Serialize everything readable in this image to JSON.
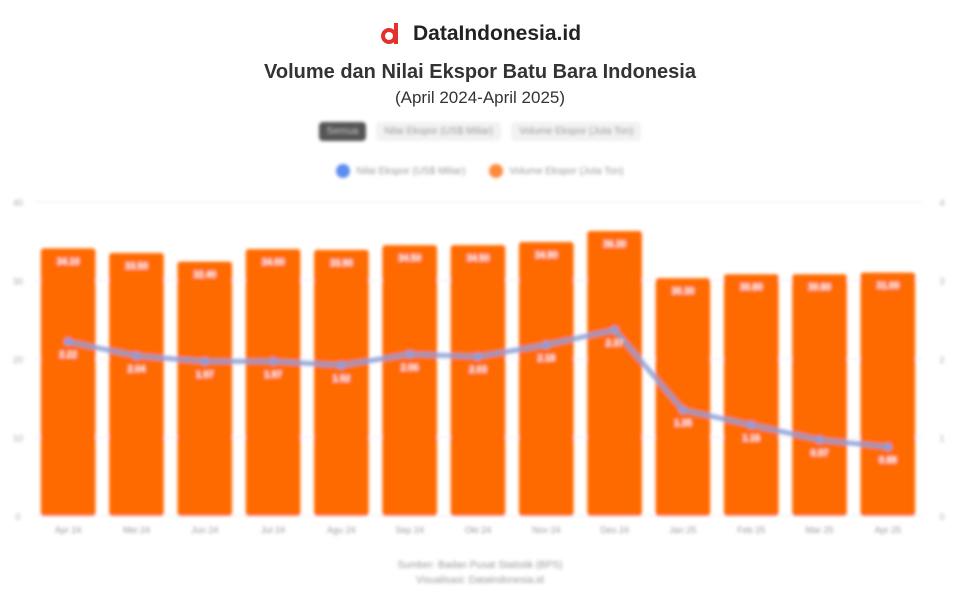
{
  "brand": {
    "name": "DataIndonesia.id",
    "color": "#e5312b"
  },
  "buttons": [
    {
      "label": "Semua",
      "active": true
    },
    {
      "label": "Nilai Ekspor (US$ Miliar)",
      "active": false
    },
    {
      "label": "Volume Ekspor (Juta Ton)",
      "active": false
    }
  ],
  "chart_data": {
    "type": "bar+line",
    "title": "Volume dan Nilai Ekspor Batu Bara Indonesia",
    "subtitle": "(April 2024-April 2025)",
    "categories": [
      "Apr 24",
      "Mei 24",
      "Jun 24",
      "Jul 24",
      "Agu 24",
      "Sep 24",
      "Okt 24",
      "Nov 24",
      "Des 24",
      "Jan 25",
      "Feb 25",
      "Mar 25",
      "Apr 25"
    ],
    "series": [
      {
        "name": "Nilai Ekspor (US$ Miliar)",
        "type": "line",
        "axis": "right",
        "color": "#5b8def",
        "values": [
          2.22,
          2.04,
          1.97,
          1.97,
          1.92,
          2.06,
          2.03,
          2.18,
          2.37,
          1.35,
          1.16,
          0.97,
          0.88
        ]
      },
      {
        "name": "Volume Ekspor (Juta Ton)",
        "type": "bar",
        "axis": "left",
        "color": "#ff6a00",
        "values": [
          34.1,
          33.5,
          32.4,
          34.0,
          33.9,
          34.5,
          34.5,
          34.9,
          36.3,
          30.3,
          30.8,
          30.8,
          31.0
        ]
      }
    ],
    "left_axis": {
      "ylim": [
        0,
        40
      ],
      "ticks": [
        "0",
        "10",
        "20",
        "30",
        "40"
      ]
    },
    "right_axis": {
      "ylim": [
        0,
        4
      ],
      "ticks": [
        "0",
        "1",
        "2",
        "3",
        "4"
      ]
    },
    "grid": true,
    "legend": "top"
  },
  "source": [
    "Sumber: Badan Pusat Statistik (BPS)",
    "Visualisasi: DataIndonesia.id"
  ]
}
